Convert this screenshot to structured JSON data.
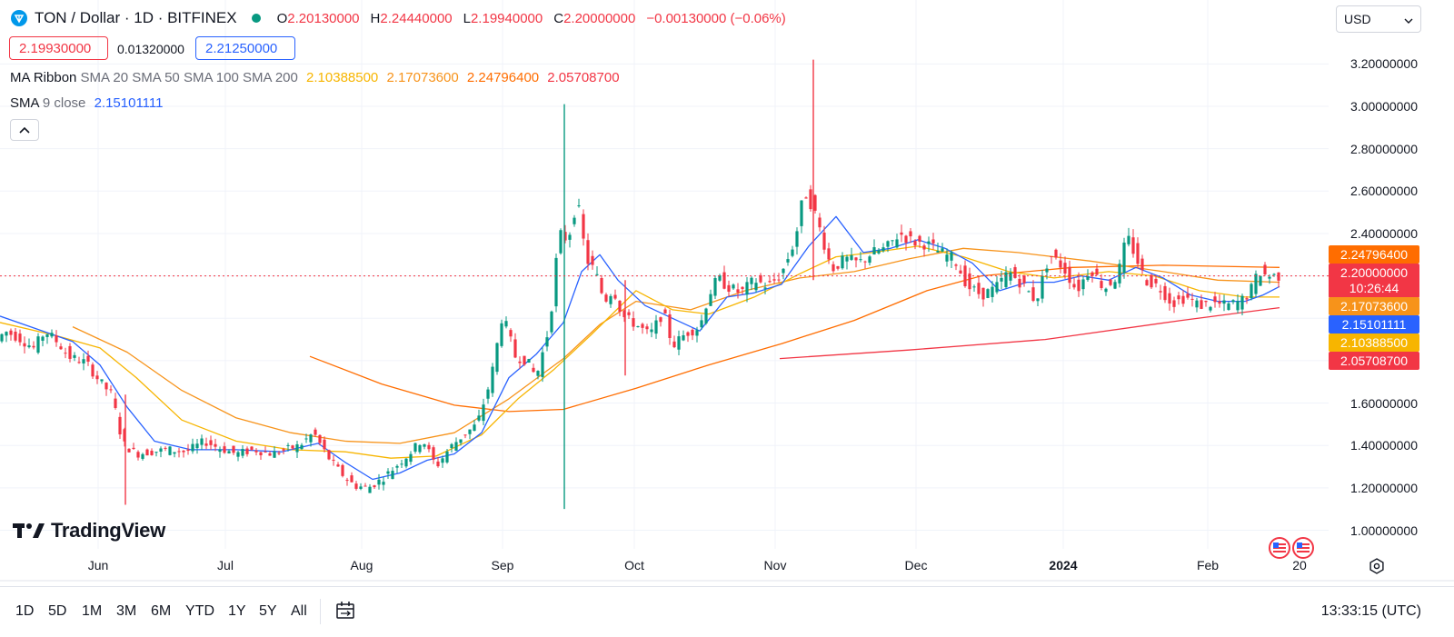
{
  "header": {
    "symbol_title": "TON / Dollar · 1D · BITFINEX",
    "open_label": "O",
    "open": "2.20130000",
    "high_label": "H",
    "high": "2.24440000",
    "low_label": "L",
    "low": "2.19940000",
    "close_label": "C",
    "close": "2.20000000",
    "change": "−0.00130000 (−0.06%)"
  },
  "quote": {
    "sell": "2.19930000",
    "spread": "0.01320000",
    "buy": "2.21250000"
  },
  "indicators": {
    "ma_ribbon_name": "MA Ribbon",
    "ma_ribbon_params": "SMA 20 SMA 50 SMA 100 SMA 200",
    "ma20": "2.10388500",
    "ma50": "2.17073600",
    "ma100": "2.24796400",
    "ma200": "2.05708700",
    "sma_name": "SMA",
    "sma_params": "9 close",
    "sma9": "2.15101111"
  },
  "currency_select": {
    "value": "USD"
  },
  "price_axis": [
    "3.20000000",
    "3.00000000",
    "2.80000000",
    "2.60000000",
    "2.40000000",
    "1.60000000",
    "1.40000000",
    "1.20000000",
    "1.00000000"
  ],
  "price_tags": {
    "ma100": "2.24796400",
    "last": "2.20000000",
    "countdown": "10:26:44",
    "ma50": "2.17073600",
    "sma9": "2.15101111",
    "ma20": "2.10388500",
    "ma200": "2.05708700"
  },
  "time_axis": [
    "Jun",
    "Jul",
    "Aug",
    "Sep",
    "Oct",
    "Nov",
    "Dec",
    "2024",
    "Feb",
    "20"
  ],
  "ranges": [
    "1D",
    "5D",
    "1M",
    "3M",
    "6M",
    "YTD",
    "1Y",
    "5Y",
    "All"
  ],
  "clock": "13:33:15 (UTC)",
  "brand": "TradingView",
  "colors": {
    "up": "#089981",
    "down": "#f23645",
    "ma20": "#f7b500",
    "ma50": "#f7931a",
    "ma100": "#ff6d00",
    "ma200": "#f23645",
    "sma9": "#2962ff"
  },
  "chart_data": {
    "type": "candlestick",
    "timeframe": "1D",
    "ylim": [
      0.95,
      3.3
    ],
    "last_price": 2.2,
    "anchors": [
      [
        0,
        1.88
      ],
      [
        10,
        1.94
      ],
      [
        25,
        1.91
      ],
      [
        42,
        1.86
      ],
      [
        55,
        1.94
      ],
      [
        70,
        1.88
      ],
      [
        80,
        1.82
      ],
      [
        100,
        1.79
      ],
      [
        115,
        1.7
      ],
      [
        128,
        1.64
      ],
      [
        140,
        1.41
      ],
      [
        155,
        1.36
      ],
      [
        170,
        1.37
      ],
      [
        190,
        1.38
      ],
      [
        210,
        1.37
      ],
      [
        230,
        1.42
      ],
      [
        245,
        1.39
      ],
      [
        265,
        1.36
      ],
      [
        285,
        1.38
      ],
      [
        305,
        1.36
      ],
      [
        320,
        1.38
      ],
      [
        335,
        1.4
      ],
      [
        350,
        1.46
      ],
      [
        365,
        1.35
      ],
      [
        380,
        1.27
      ],
      [
        395,
        1.21
      ],
      [
        410,
        1.2
      ],
      [
        425,
        1.24
      ],
      [
        440,
        1.3
      ],
      [
        455,
        1.36
      ],
      [
        470,
        1.43
      ],
      [
        485,
        1.3
      ],
      [
        500,
        1.39
      ],
      [
        515,
        1.45
      ],
      [
        530,
        1.5
      ],
      [
        545,
        1.71
      ],
      [
        558,
        2.02
      ],
      [
        572,
        1.82
      ],
      [
        585,
        1.8
      ],
      [
        595,
        1.72
      ],
      [
        610,
        1.97
      ],
      [
        620,
        2.4
      ],
      [
        630,
        2.37
      ],
      [
        640,
        2.56
      ],
      [
        650,
        2.28
      ],
      [
        660,
        2.22
      ],
      [
        670,
        2.08
      ],
      [
        680,
        2.14
      ],
      [
        690,
        2.01
      ],
      [
        705,
        1.97
      ],
      [
        720,
        1.92
      ],
      [
        735,
        2.03
      ],
      [
        745,
        1.87
      ],
      [
        760,
        1.93
      ],
      [
        775,
        1.96
      ],
      [
        785,
        2.11
      ],
      [
        795,
        2.19
      ],
      [
        805,
        2.15
      ],
      [
        820,
        2.12
      ],
      [
        835,
        2.18
      ],
      [
        850,
        2.15
      ],
      [
        865,
        2.21
      ],
      [
        880,
        2.37
      ],
      [
        890,
        2.6
      ],
      [
        900,
        2.52
      ],
      [
        910,
        2.38
      ],
      [
        920,
        2.23
      ],
      [
        935,
        2.28
      ],
      [
        950,
        2.26
      ],
      [
        965,
        2.31
      ],
      [
        980,
        2.33
      ],
      [
        995,
        2.4
      ],
      [
        1010,
        2.36
      ],
      [
        1025,
        2.35
      ],
      [
        1040,
        2.31
      ],
      [
        1055,
        2.28
      ],
      [
        1070,
        2.15
      ],
      [
        1085,
        2.11
      ],
      [
        1100,
        2.14
      ],
      [
        1115,
        2.22
      ],
      [
        1130,
        2.16
      ],
      [
        1145,
        2.08
      ],
      [
        1160,
        2.3
      ],
      [
        1175,
        2.24
      ],
      [
        1190,
        2.13
      ],
      [
        1205,
        2.24
      ],
      [
        1220,
        2.14
      ],
      [
        1235,
        2.2
      ],
      [
        1245,
        2.39
      ],
      [
        1252,
        2.32
      ],
      [
        1265,
        2.18
      ],
      [
        1280,
        2.15
      ],
      [
        1295,
        2.07
      ],
      [
        1310,
        2.1
      ],
      [
        1325,
        2.06
      ],
      [
        1340,
        2.07
      ],
      [
        1355,
        2.06
      ],
      [
        1370,
        2.08
      ],
      [
        1380,
        2.12
      ],
      [
        1390,
        2.22
      ],
      [
        1400,
        2.2
      ],
      [
        1408,
        2.2
      ]
    ],
    "wicks": [
      {
        "x": 138,
        "high": 1.64,
        "low": 1.12
      },
      {
        "x": 621,
        "high": 3.01,
        "low": 1.1
      },
      {
        "x": 895,
        "high": 3.22,
        "low": 2.18
      },
      {
        "x": 688,
        "high": 2.18,
        "low": 1.73
      }
    ],
    "ma_ribbon": {
      "sma200": [
        [
          858,
          1.81
        ],
        [
          1000,
          1.85
        ],
        [
          1150,
          1.9
        ],
        [
          1300,
          1.99
        ],
        [
          1408,
          2.05
        ]
      ],
      "sma100": [
        [
          341,
          1.82
        ],
        [
          420,
          1.69
        ],
        [
          500,
          1.59
        ],
        [
          560,
          1.56
        ],
        [
          620,
          1.57
        ],
        [
          700,
          1.67
        ],
        [
          780,
          1.78
        ],
        [
          860,
          1.88
        ],
        [
          940,
          1.99
        ],
        [
          1020,
          2.13
        ],
        [
          1080,
          2.2
        ],
        [
          1180,
          2.24
        ],
        [
          1280,
          2.25
        ],
        [
          1408,
          2.24
        ]
      ],
      "sma50": [
        [
          80,
          1.96
        ],
        [
          140,
          1.84
        ],
        [
          200,
          1.66
        ],
        [
          260,
          1.53
        ],
        [
          320,
          1.46
        ],
        [
          380,
          1.42
        ],
        [
          440,
          1.41
        ],
        [
          500,
          1.46
        ],
        [
          560,
          1.62
        ],
        [
          620,
          1.81
        ],
        [
          660,
          1.97
        ],
        [
          700,
          2.08
        ],
        [
          760,
          2.04
        ],
        [
          820,
          2.13
        ],
        [
          880,
          2.19
        ],
        [
          940,
          2.22
        ],
        [
          1000,
          2.28
        ],
        [
          1060,
          2.33
        ],
        [
          1120,
          2.31
        ],
        [
          1200,
          2.27
        ],
        [
          1280,
          2.22
        ],
        [
          1340,
          2.18
        ],
        [
          1408,
          2.17
        ]
      ],
      "sma20": [
        [
          0,
          1.98
        ],
        [
          60,
          1.92
        ],
        [
          110,
          1.86
        ],
        [
          150,
          1.72
        ],
        [
          200,
          1.52
        ],
        [
          260,
          1.42
        ],
        [
          320,
          1.38
        ],
        [
          380,
          1.37
        ],
        [
          430,
          1.34
        ],
        [
          480,
          1.35
        ],
        [
          530,
          1.45
        ],
        [
          570,
          1.62
        ],
        [
          610,
          1.76
        ],
        [
          650,
          1.92
        ],
        [
          700,
          2.13
        ],
        [
          740,
          2.04
        ],
        [
          780,
          2.02
        ],
        [
          830,
          2.1
        ],
        [
          880,
          2.21
        ],
        [
          920,
          2.29
        ],
        [
          960,
          2.31
        ],
        [
          1010,
          2.34
        ],
        [
          1060,
          2.29
        ],
        [
          1110,
          2.22
        ],
        [
          1160,
          2.19
        ],
        [
          1220,
          2.22
        ],
        [
          1270,
          2.2
        ],
        [
          1320,
          2.13
        ],
        [
          1370,
          2.1
        ],
        [
          1408,
          2.1
        ]
      ]
    },
    "sma9": [
      [
        0,
        2.01
      ],
      [
        40,
        1.95
      ],
      [
        80,
        1.89
      ],
      [
        110,
        1.78
      ],
      [
        140,
        1.58
      ],
      [
        170,
        1.42
      ],
      [
        210,
        1.38
      ],
      [
        260,
        1.38
      ],
      [
        310,
        1.37
      ],
      [
        350,
        1.41
      ],
      [
        380,
        1.32
      ],
      [
        410,
        1.24
      ],
      [
        440,
        1.27
      ],
      [
        470,
        1.33
      ],
      [
        500,
        1.36
      ],
      [
        530,
        1.46
      ],
      [
        560,
        1.72
      ],
      [
        590,
        1.83
      ],
      [
        620,
        1.98
      ],
      [
        640,
        2.22
      ],
      [
        660,
        2.3
      ],
      [
        680,
        2.18
      ],
      [
        710,
        2.06
      ],
      [
        740,
        2.0
      ],
      [
        770,
        1.94
      ],
      [
        800,
        2.1
      ],
      [
        830,
        2.12
      ],
      [
        860,
        2.16
      ],
      [
        890,
        2.34
      ],
      [
        920,
        2.48
      ],
      [
        950,
        2.31
      ],
      [
        980,
        2.33
      ],
      [
        1010,
        2.37
      ],
      [
        1040,
        2.33
      ],
      [
        1070,
        2.26
      ],
      [
        1100,
        2.13
      ],
      [
        1130,
        2.17
      ],
      [
        1160,
        2.17
      ],
      [
        1190,
        2.2
      ],
      [
        1220,
        2.18
      ],
      [
        1250,
        2.24
      ],
      [
        1280,
        2.19
      ],
      [
        1310,
        2.11
      ],
      [
        1340,
        2.08
      ],
      [
        1370,
        2.08
      ],
      [
        1390,
        2.11
      ],
      [
        1408,
        2.15
      ]
    ]
  }
}
